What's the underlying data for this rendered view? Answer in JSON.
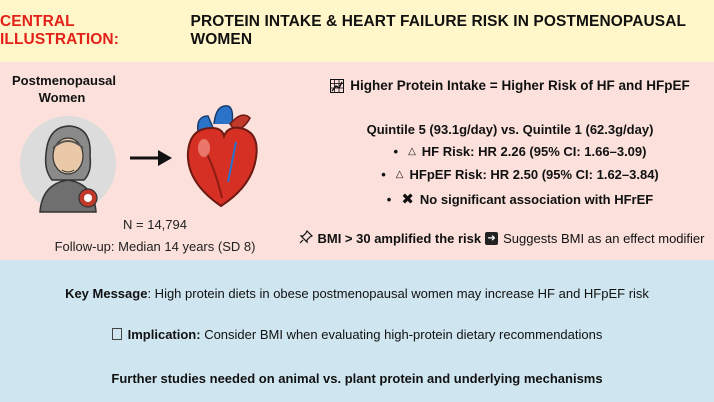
{
  "title": {
    "prefix": "CENTRAL ILLUSTRATION:",
    "main": "PROTEIN INTAKE & HEART FAILURE RISK IN POSTMENOPAUSAL WOMEN"
  },
  "left": {
    "population_label": "Postmenopausal Women",
    "n": "N = 14,794",
    "followup": "Follow-up: Median 14 years (SD 8)"
  },
  "right": {
    "header": "Higher Protein Intake = Higher Risk of HF and HFpEF",
    "comparison": "Quintile 5 (93.1g/day) vs. Quintile 1 (62.3g/day)",
    "bullet": "•",
    "hf": "HF Risk: HR 2.26 (95% CI: 1.66–3.09)",
    "hfpef": "HFpEF Risk: HR 2.50 (95% CI: 1.62–3.84)",
    "hfref": "No significant association with HFrEF",
    "bmi_bold": "BMI > 30 amplified the risk",
    "bmi_rest": "Suggests BMI as an effect modifier"
  },
  "bottom": {
    "key_label": "Key Message",
    "key_text": ": High protein diets in obese postmenopausal women may increase HF and HFpEF risk",
    "impl_label": "Implication:",
    "impl_text": " Consider BMI when evaluating high-protein dietary recommendations",
    "further": "Further studies needed on animal vs. plant protein and underlying mechanisms"
  },
  "colors": {
    "title_bg": "#fff6c9",
    "title_accent": "#e32119",
    "mid_bg": "#fbe0db",
    "bottom_bg": "#cfe6f1"
  },
  "icons": [
    "chart-icon",
    "pushpin-icon",
    "arrow-right-box-icon",
    "triangle-icon",
    "x-mark-icon",
    "woman-illustration",
    "heart-illustration",
    "arrow-icon"
  ]
}
